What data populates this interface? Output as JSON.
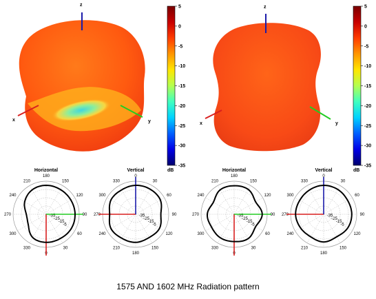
{
  "caption": "1575 AND 1602 MHz Radiation pattern",
  "colorbar": {
    "ticks": [
      "5",
      "0",
      "-5",
      "-10",
      "-15",
      "-20",
      "-25",
      "-30",
      "-35"
    ],
    "unit": "dB",
    "range": [
      -35,
      5
    ],
    "colors": [
      "#00006e",
      "#0000e6",
      "#0060ff",
      "#00d2ff",
      "#40ffc0",
      "#b4ff50",
      "#ffe600",
      "#ff9600",
      "#ff3c00",
      "#c80000",
      "#7a0000"
    ]
  },
  "axis_labels": {
    "x": "x",
    "y": "y",
    "z": "z"
  },
  "axis_colors": {
    "x": "#d81f1f",
    "y": "#22cc22",
    "z": "#1a1aaa"
  },
  "pattern_colors": {
    "left_blob": "#ff5a10",
    "right_blob": "#fb4716",
    "left_dip": "#5fe2d4"
  },
  "polar_ticks": {
    "horizontal": [
      "180",
      "150",
      "120",
      "90",
      "60",
      "30",
      "0",
      "330",
      "300",
      "270",
      "240",
      "210"
    ],
    "vertical": [
      "0",
      "30",
      "60",
      "90",
      "120",
      "150",
      "180",
      "210",
      "240",
      "270",
      "300",
      "330"
    ],
    "radial": [
      "-35",
      "-25",
      "-15",
      "-5"
    ]
  },
  "chart_data": [
    {
      "type": "polar",
      "title": "Horizontal",
      "rlim": [
        -35,
        5
      ],
      "theta_deg": [
        0,
        30,
        60,
        90,
        120,
        150,
        180,
        210,
        240,
        270,
        300,
        330
      ],
      "r_db": [
        -1,
        -2.5,
        -10,
        -11,
        -5,
        -1,
        0,
        -0.5,
        -0.5,
        0,
        0,
        -1
      ]
    },
    {
      "type": "polar",
      "title": "Vertical",
      "rlim": [
        -35,
        5
      ],
      "theta_deg": [
        0,
        30,
        60,
        90,
        120,
        150,
        180,
        210,
        240,
        270,
        300,
        330
      ],
      "r_db": [
        0,
        0,
        -0.5,
        -4.5,
        -1.5,
        -2.5,
        -1,
        -1.5,
        -0.5,
        -3.5,
        -0.5,
        -1
      ]
    },
    {
      "type": "polar",
      "title": "Horizontal",
      "rlim": [
        -35,
        5
      ],
      "theta_deg": [
        0,
        30,
        60,
        90,
        120,
        150,
        180,
        210,
        240,
        270,
        300,
        330
      ],
      "r_db": [
        -2,
        -2,
        -3.5,
        -2.5,
        -6,
        -1,
        -0.5,
        -0.5,
        -5,
        -1,
        -5,
        -1
      ]
    },
    {
      "type": "polar",
      "title": "Vertical",
      "rlim": [
        -35,
        5
      ],
      "theta_deg": [
        0,
        30,
        60,
        90,
        120,
        150,
        180,
        210,
        240,
        270,
        300,
        330
      ],
      "r_db": [
        0,
        -0.5,
        -1.5,
        -1,
        -1.5,
        -3.5,
        -1.5,
        -3.5,
        -2.5,
        -1,
        -1.5,
        -1
      ]
    }
  ]
}
